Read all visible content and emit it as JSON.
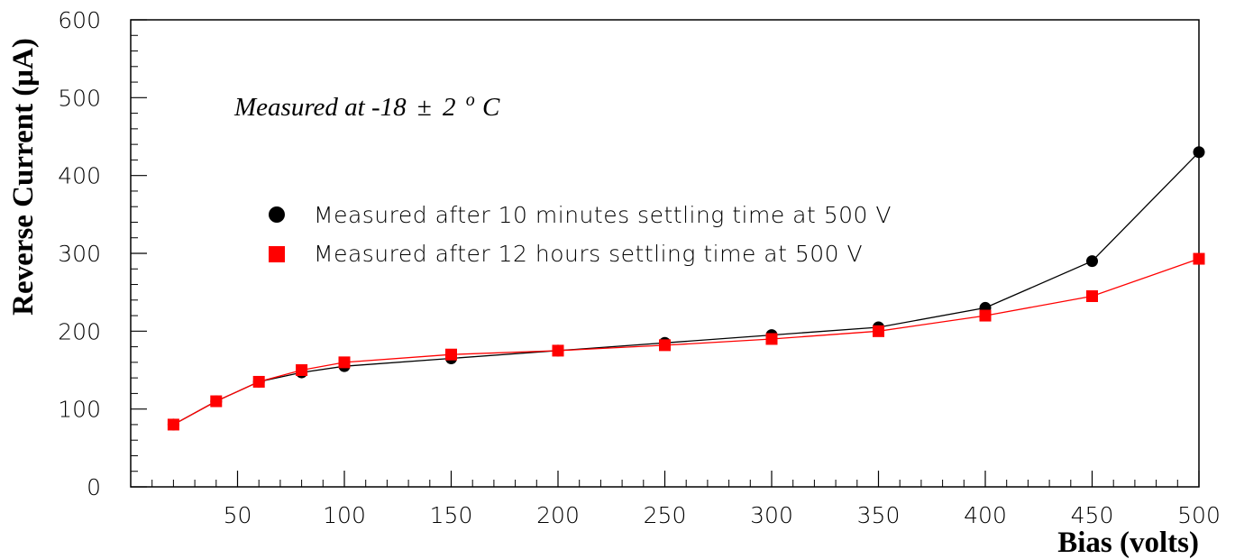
{
  "chart_data": {
    "type": "line",
    "title": "",
    "xlabel": "Bias (volts)",
    "ylabel": "Reverse Current (μA)",
    "xlim": [
      0,
      500
    ],
    "ylim": [
      0,
      600
    ],
    "x_major_ticks": [
      50,
      100,
      150,
      200,
      250,
      300,
      350,
      400,
      450,
      500
    ],
    "y_major_ticks": [
      0,
      100,
      200,
      300,
      400,
      500,
      600
    ],
    "x_tick_labels": [
      "50",
      "100",
      "150",
      "200",
      "250",
      "300",
      "350",
      "400",
      "450",
      "500"
    ],
    "y_tick_labels": [
      "0",
      "100",
      "200",
      "300",
      "400",
      "500",
      "600"
    ],
    "annotation": {
      "text": "Measured at -18",
      "pm": "±",
      "value": "2",
      "degree": "o",
      "unit": "C"
    },
    "legend_position": "center-left",
    "grid": false,
    "series": [
      {
        "name": "Measured after 10 minutes settling time at 500 V",
        "marker": "circle",
        "color": "#000000",
        "x": [
          20,
          40,
          60,
          80,
          100,
          150,
          200,
          250,
          300,
          350,
          400,
          450,
          500
        ],
        "y": [
          80,
          110,
          135,
          147,
          155,
          165,
          175,
          185,
          195,
          205,
          230,
          290,
          430
        ]
      },
      {
        "name": "Measured after 12 hours settling time at 500 V",
        "marker": "square",
        "color": "#ff0000",
        "x": [
          20,
          40,
          60,
          80,
          100,
          150,
          200,
          250,
          300,
          350,
          400,
          450,
          500
        ],
        "y": [
          80,
          110,
          135,
          150,
          160,
          170,
          175,
          182,
          190,
          200,
          220,
          245,
          293
        ]
      }
    ]
  }
}
